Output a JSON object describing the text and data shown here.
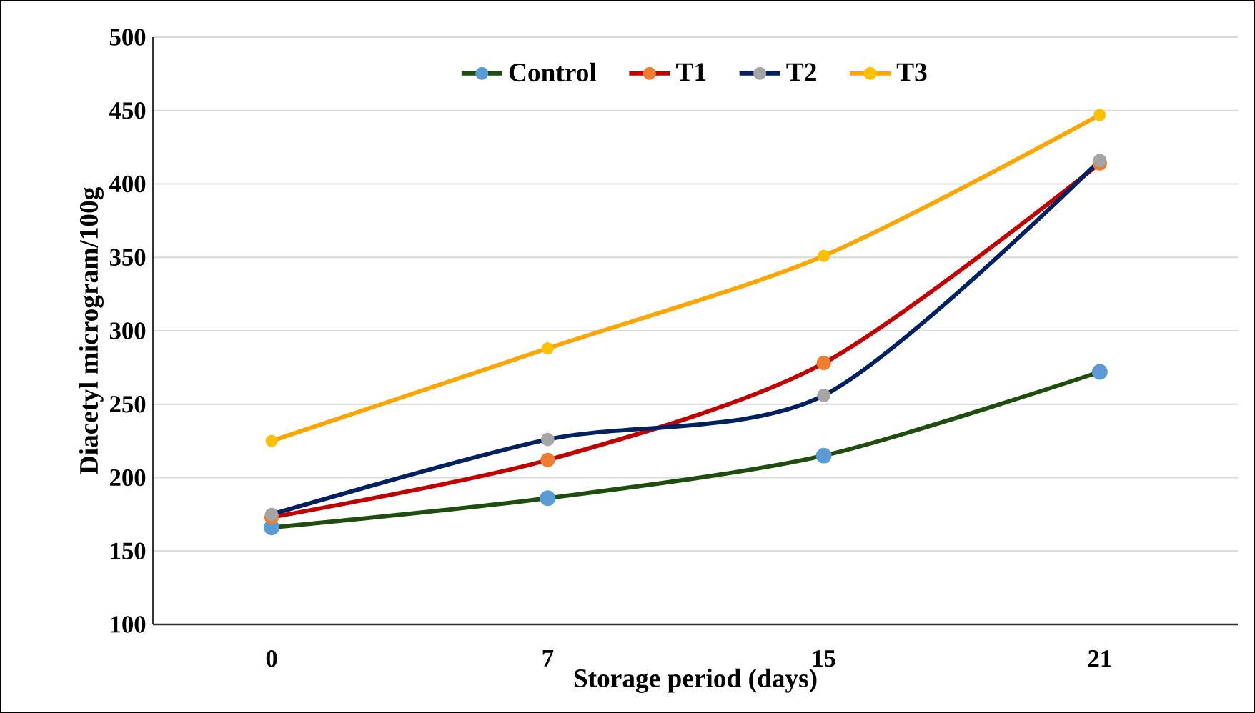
{
  "chart_data": {
    "type": "line",
    "xlabel": "Storage period (days)",
    "ylabel": "Diacetyl microgram/100g",
    "categories": [
      "0",
      "7",
      "15",
      "21"
    ],
    "ylim": [
      100,
      500
    ],
    "yticks": [
      100,
      150,
      200,
      250,
      300,
      350,
      400,
      450,
      500
    ],
    "grid": "y",
    "legend": "top",
    "marker": "circle",
    "line_style": "solid",
    "series": [
      {
        "name": "Control",
        "color": "#1e4d0f",
        "colors": [
          "#5b9bd5",
          "#5b9bd5",
          "#5b9bd5",
          "#5b9bd5"
        ],
        "values": [
          166,
          186,
          215,
          272
        ]
      },
      {
        "name": "T1",
        "color": "#c00000",
        "colors": [
          "#ed7d31",
          "#ed7d31",
          "#ed7d31",
          "#ed7d31"
        ],
        "values": [
          173,
          212,
          278,
          414
        ]
      },
      {
        "name": "T2",
        "color": "#002060",
        "colors": [
          "#a5a5a5",
          "#a5a5a5",
          "#a5a5a5",
          "#a5a5a5"
        ],
        "values": [
          175,
          226,
          256,
          416
        ]
      },
      {
        "name": "T3",
        "color": "#ffa500",
        "colors": [
          "#ffc000",
          "#ffc000",
          "#ffc000",
          "#ffc000"
        ],
        "values": [
          225,
          288,
          351,
          447
        ]
      }
    ]
  }
}
